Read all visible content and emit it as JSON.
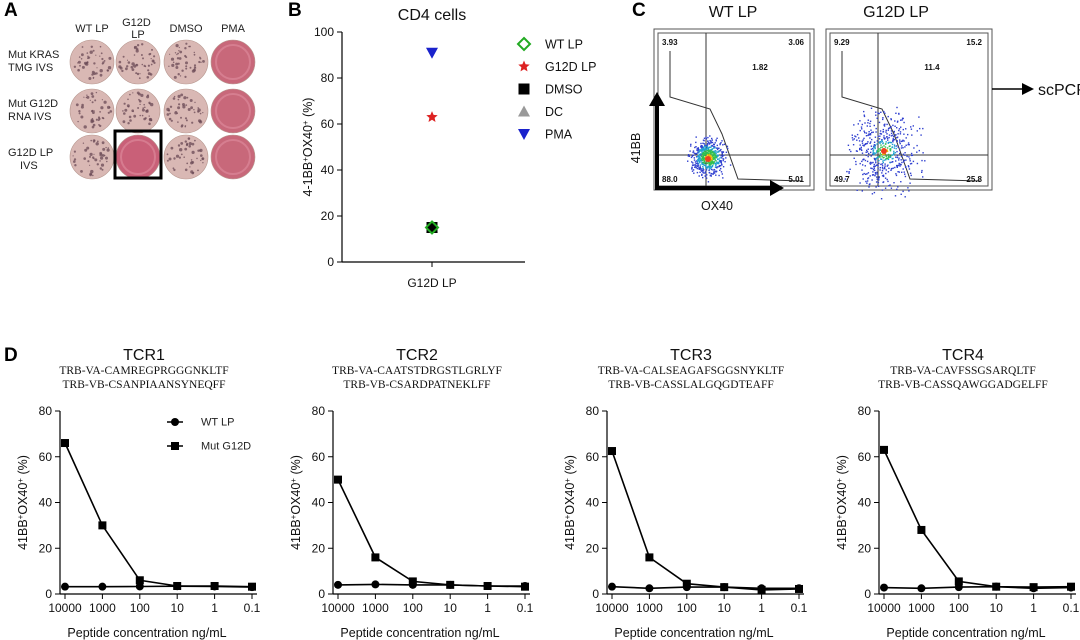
{
  "panel_letters": [
    "A",
    "B",
    "C",
    "D"
  ],
  "panel_a": {
    "columns": [
      "WT LP",
      "G12D LP",
      "DMSO",
      "PMA"
    ],
    "rows": [
      "Mut KRAS TMG IVS",
      "Mut G12D RNA IVS",
      "G12D LP IVS"
    ],
    "well_colors": {
      "spot": "#d9b8b4",
      "pma": "#c8687a",
      "highlight": "#c96078"
    }
  },
  "panel_c": {
    "plots": [
      {
        "title": "WT LP",
        "ul": "3.93",
        "ur": "3.06",
        "mid": "1.82",
        "ll": "88.0",
        "lr": "5.01"
      },
      {
        "title": "G12D LP",
        "ul": "9.29",
        "ur": "15.2",
        "mid": "11.4",
        "ll": "49.7",
        "lr": "25.8"
      }
    ],
    "y_axis_label": "41BB",
    "x_axis_label": "OX40",
    "arrow_label": "scPCR"
  },
  "chart_data": [
    {
      "type": "scatter",
      "title": "CD4 cells",
      "ylabel": "4-1BB+OX40+ (%)",
      "ylim": [
        0,
        100
      ],
      "yticks": [
        0,
        20,
        40,
        60,
        80,
        100
      ],
      "categories": [
        "G12D LP"
      ],
      "series": [
        {
          "name": "WT LP",
          "values": [
            15
          ],
          "marker": "diamond-open",
          "color": "#22aa22"
        },
        {
          "name": "G12D LP",
          "values": [
            63
          ],
          "marker": "star",
          "color": "#dd2222"
        },
        {
          "name": "DMSO",
          "values": [
            15
          ],
          "marker": "square",
          "color": "#000000"
        },
        {
          "name": "DC",
          "values": [
            15
          ],
          "marker": "triangle",
          "color": "#999999"
        },
        {
          "name": "PMA",
          "values": [
            91
          ],
          "marker": "triangle-down",
          "color": "#1a22cc"
        }
      ]
    },
    {
      "type": "line",
      "title": "TCR1",
      "seq1": "TRB-VA-CAMREGPRGGGNKLTF",
      "seq2": "TRB-VB-CSANPIAANSYNEQFF",
      "xlabel": "Peptide concentration ng/mL",
      "ylabel": "41BB+OX40+ (%)",
      "categories": [
        "10000",
        "1000",
        "100",
        "10",
        "1",
        "0.1"
      ],
      "ylim": [
        0,
        80
      ],
      "yticks": [
        0,
        20,
        40,
        60,
        80
      ],
      "legend": [
        "WT LP",
        "Mut G12D"
      ],
      "series": [
        {
          "name": "WT LP",
          "values": [
            3.2,
            3.2,
            3.3,
            3.4,
            3.3,
            3.0
          ],
          "marker": "circle"
        },
        {
          "name": "Mut G12D",
          "values": [
            66,
            30,
            6,
            3.5,
            3.5,
            3.2
          ],
          "marker": "square"
        }
      ]
    },
    {
      "type": "line",
      "title": "TCR2",
      "seq1": "TRB-VA-CAATSTDRGSTLGRLYF",
      "seq2": "TRB-VB-CSARDPATNEKLFF",
      "xlabel": "Peptide concentration ng/mL",
      "ylabel": "41BB+OX40+ (%)",
      "categories": [
        "10000",
        "1000",
        "100",
        "10",
        "1",
        "0.1"
      ],
      "ylim": [
        0,
        80
      ],
      "yticks": [
        0,
        20,
        40,
        60,
        80
      ],
      "series": [
        {
          "name": "WT LP",
          "values": [
            4,
            4.2,
            4.0,
            4.0,
            3.5,
            3.5
          ],
          "marker": "circle"
        },
        {
          "name": "Mut G12D",
          "values": [
            50,
            16,
            5.5,
            4,
            3.5,
            3.2
          ],
          "marker": "square"
        }
      ]
    },
    {
      "type": "line",
      "title": "TCR3",
      "seq1": "TRB-VA-CALSEAGAFSGGSNYKLTF",
      "seq2": "TRB-VB-CASSLALGQGDTEAFF",
      "xlabel": "Peptide concentration ng/mL",
      "ylabel": "41BB+OX40+ (%)",
      "categories": [
        "10000",
        "1000",
        "100",
        "10",
        "1",
        "0.1"
      ],
      "ylim": [
        0,
        80
      ],
      "yticks": [
        0,
        20,
        40,
        60,
        80
      ],
      "series": [
        {
          "name": "WT LP",
          "values": [
            3.2,
            2.5,
            3.0,
            3.0,
            2.5,
            2.5
          ],
          "marker": "circle"
        },
        {
          "name": "Mut G12D",
          "values": [
            62.5,
            16,
            4.5,
            3.0,
            1.8,
            2.2
          ],
          "marker": "square"
        }
      ]
    },
    {
      "type": "line",
      "title": "TCR4",
      "seq1": "TRB-VA-CAVFSSGSARQLTF",
      "seq2": "TRB-VB-CASSQAWGGADGELFF",
      "xlabel": "Peptide concentration ng/mL",
      "ylabel": "41BB+OX40+ (%)",
      "categories": [
        "10000",
        "1000",
        "100",
        "10",
        "1",
        "0.1"
      ],
      "ylim": [
        0,
        80
      ],
      "yticks": [
        0,
        20,
        40,
        60,
        80
      ],
      "series": [
        {
          "name": "WT LP",
          "values": [
            2.8,
            2.5,
            3.0,
            3.2,
            2.5,
            2.8
          ],
          "marker": "circle"
        },
        {
          "name": "Mut G12D",
          "values": [
            63,
            28,
            5.5,
            3.2,
            3.0,
            3.2
          ],
          "marker": "square"
        }
      ]
    }
  ]
}
